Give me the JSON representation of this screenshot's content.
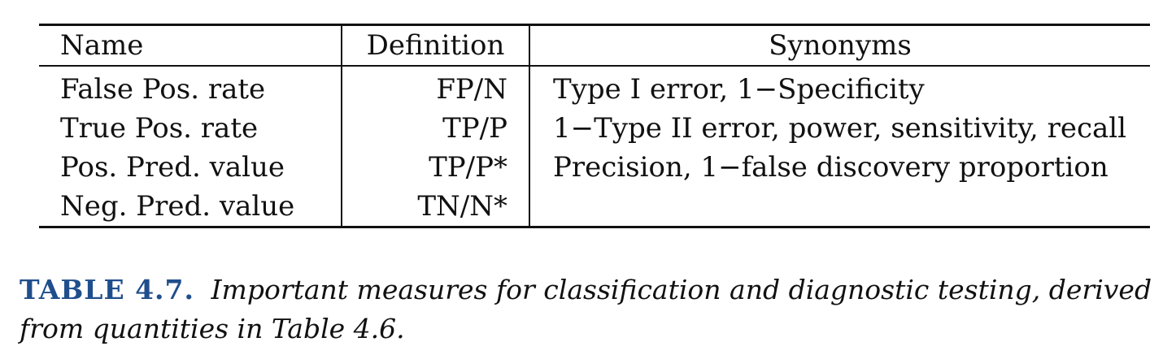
{
  "table": {
    "headers": {
      "name": "Name",
      "definition": "Definition",
      "synonyms": "Synonyms"
    },
    "rows": [
      {
        "name": "False Pos. rate",
        "definition": "FP/N",
        "synonyms": "Type I error, 1−Specificity"
      },
      {
        "name": "True Pos. rate",
        "definition": "TP/P",
        "synonyms": "1−Type II error, power, sensitivity, recall"
      },
      {
        "name": "Pos. Pred. value",
        "definition": "TP/P*",
        "synonyms": "Precision, 1−false discovery proportion"
      },
      {
        "name": "Neg. Pred. value",
        "definition": "TN/N*",
        "synonyms": ""
      }
    ]
  },
  "caption": {
    "label": "TABLE 4.7.",
    "text": "Important measures for classification and diagnostic testing, derived from quantities in Table 4.6."
  }
}
